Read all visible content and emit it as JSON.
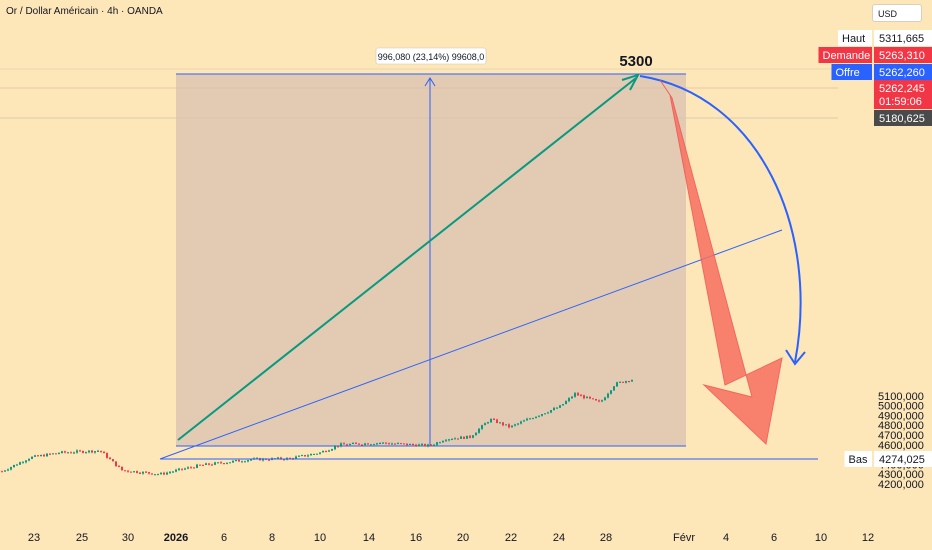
{
  "header": {
    "title": "Or / Dollar Américain · 4h · OANDA",
    "currency": "USD"
  },
  "chart_data": {
    "type": "candlestick",
    "price_axis": {
      "ticks": [
        4200000,
        4300000,
        4400000,
        4500000,
        4600000,
        4700000,
        4800000,
        4900000,
        5000000,
        5100000
      ],
      "tick_labels": [
        "4200,000",
        "4300,000",
        "4400,000",
        "4500,000",
        "4600,000",
        "4700,000",
        "4800,000",
        "4900,000",
        "5000,000",
        "5100,000"
      ]
    },
    "time_axis": {
      "labels": [
        "23",
        "25",
        "30",
        "2026",
        "6",
        "8",
        "10",
        "14",
        "16",
        "20",
        "22",
        "24",
        "28",
        "Févr",
        "4",
        "6",
        "10",
        "12"
      ]
    },
    "price_tags": [
      {
        "label": "Haut",
        "value": "5311,665",
        "color": "#ffffff",
        "text": "#131722"
      },
      {
        "label": "Demande",
        "value": "5263,310",
        "color": "#f23645",
        "text": "#ffffff"
      },
      {
        "label": "Offre",
        "value": "5262,260",
        "color": "#2962ff",
        "text": "#ffffff"
      },
      {
        "label": "",
        "value": "5262,245",
        "color": "#f23645",
        "text": "#ffffff"
      },
      {
        "label": "",
        "value": "01:59:06",
        "color": "#f23645",
        "text": "#ffffff"
      },
      {
        "label": "",
        "value": "5180,625",
        "color": "#4a4a4a",
        "text": "#ffffff"
      },
      {
        "label": "Bas",
        "value": "4274,025",
        "color": "#ffffff",
        "text": "#131722"
      }
    ],
    "annotations": {
      "measure_label": "996,080 (23,14%) 99608,0",
      "target_label": "5300"
    },
    "colors": {
      "up": "#089981",
      "down": "#f23645",
      "measure_box": "#d8c2b0",
      "trend_line": "#089981",
      "blue_line": "#2962ff",
      "arrow": "#f87060"
    }
  }
}
